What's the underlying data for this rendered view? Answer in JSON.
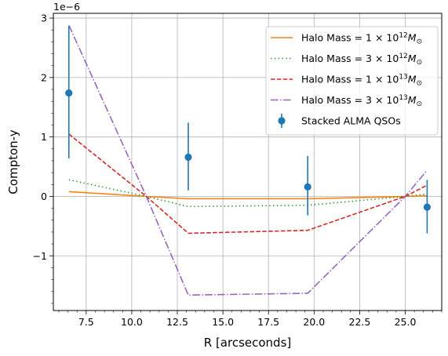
{
  "chart_data": {
    "type": "line",
    "xlabel": "R [arcseconds]",
    "ylabel": "Compton-y",
    "y_scale_label": "1e−6",
    "xlim": [
      5.7,
      27.0
    ],
    "ylim": [
      -1.92,
      3.08
    ],
    "x_major_ticks": [
      7.5,
      10.0,
      12.5,
      15.0,
      17.5,
      20.0,
      22.5,
      25.0
    ],
    "x_tick_labels": [
      "7.5",
      "10.0",
      "12.5",
      "15.0",
      "17.5",
      "20.0",
      "22.5",
      "25.0"
    ],
    "y_major_ticks": [
      -1,
      0,
      1,
      2,
      3
    ],
    "y_tick_labels": [
      "−1",
      "0",
      "1",
      "2",
      "3"
    ],
    "grid": true,
    "legend_position": "upper-right",
    "series": [
      {
        "name_prefix": "Halo Mass",
        "name_coeff": "1",
        "name_exp": "12",
        "color": "#ff7f0e",
        "dash": "solid",
        "x": [
          6.55,
          10.8,
          13.1,
          19.65,
          25.0,
          26.2
        ],
        "y": [
          0.08,
          0.0,
          -0.04,
          -0.04,
          0.0,
          0.01
        ]
      },
      {
        "name_prefix": "Halo Mass",
        "name_coeff": "3",
        "name_exp": "12",
        "color": "#2ca02c",
        "dash": "dotted",
        "x": [
          6.55,
          10.8,
          13.1,
          19.65,
          25.0,
          26.2
        ],
        "y": [
          0.28,
          0.0,
          -0.17,
          -0.15,
          0.0,
          0.04
        ]
      },
      {
        "name_prefix": "Halo Mass",
        "name_coeff": "1",
        "name_exp": "13",
        "color": "#d62728",
        "dash": "dashed",
        "x": [
          6.55,
          10.8,
          13.1,
          19.65,
          25.0,
          26.2
        ],
        "y": [
          1.05,
          0.0,
          -0.62,
          -0.57,
          0.0,
          0.19
        ]
      },
      {
        "name_prefix": "Halo Mass",
        "name_coeff": "3",
        "name_exp": "13",
        "color": "#9467bd",
        "dash": "dashdot",
        "x": [
          6.55,
          10.8,
          13.1,
          19.65,
          25.0,
          26.2
        ],
        "y": [
          2.88,
          0.0,
          -1.66,
          -1.63,
          0.0,
          0.44
        ]
      }
    ],
    "errorbar_series": {
      "name": "Stacked ALMA QSOs",
      "color": "#1f77b4",
      "x": [
        6.55,
        13.1,
        19.65,
        26.2
      ],
      "y": [
        1.74,
        0.66,
        0.16,
        -0.18
      ],
      "yerr_low": [
        1.1,
        0.56,
        0.48,
        0.44
      ],
      "yerr_high": [
        1.12,
        0.58,
        0.52,
        0.46
      ]
    }
  }
}
